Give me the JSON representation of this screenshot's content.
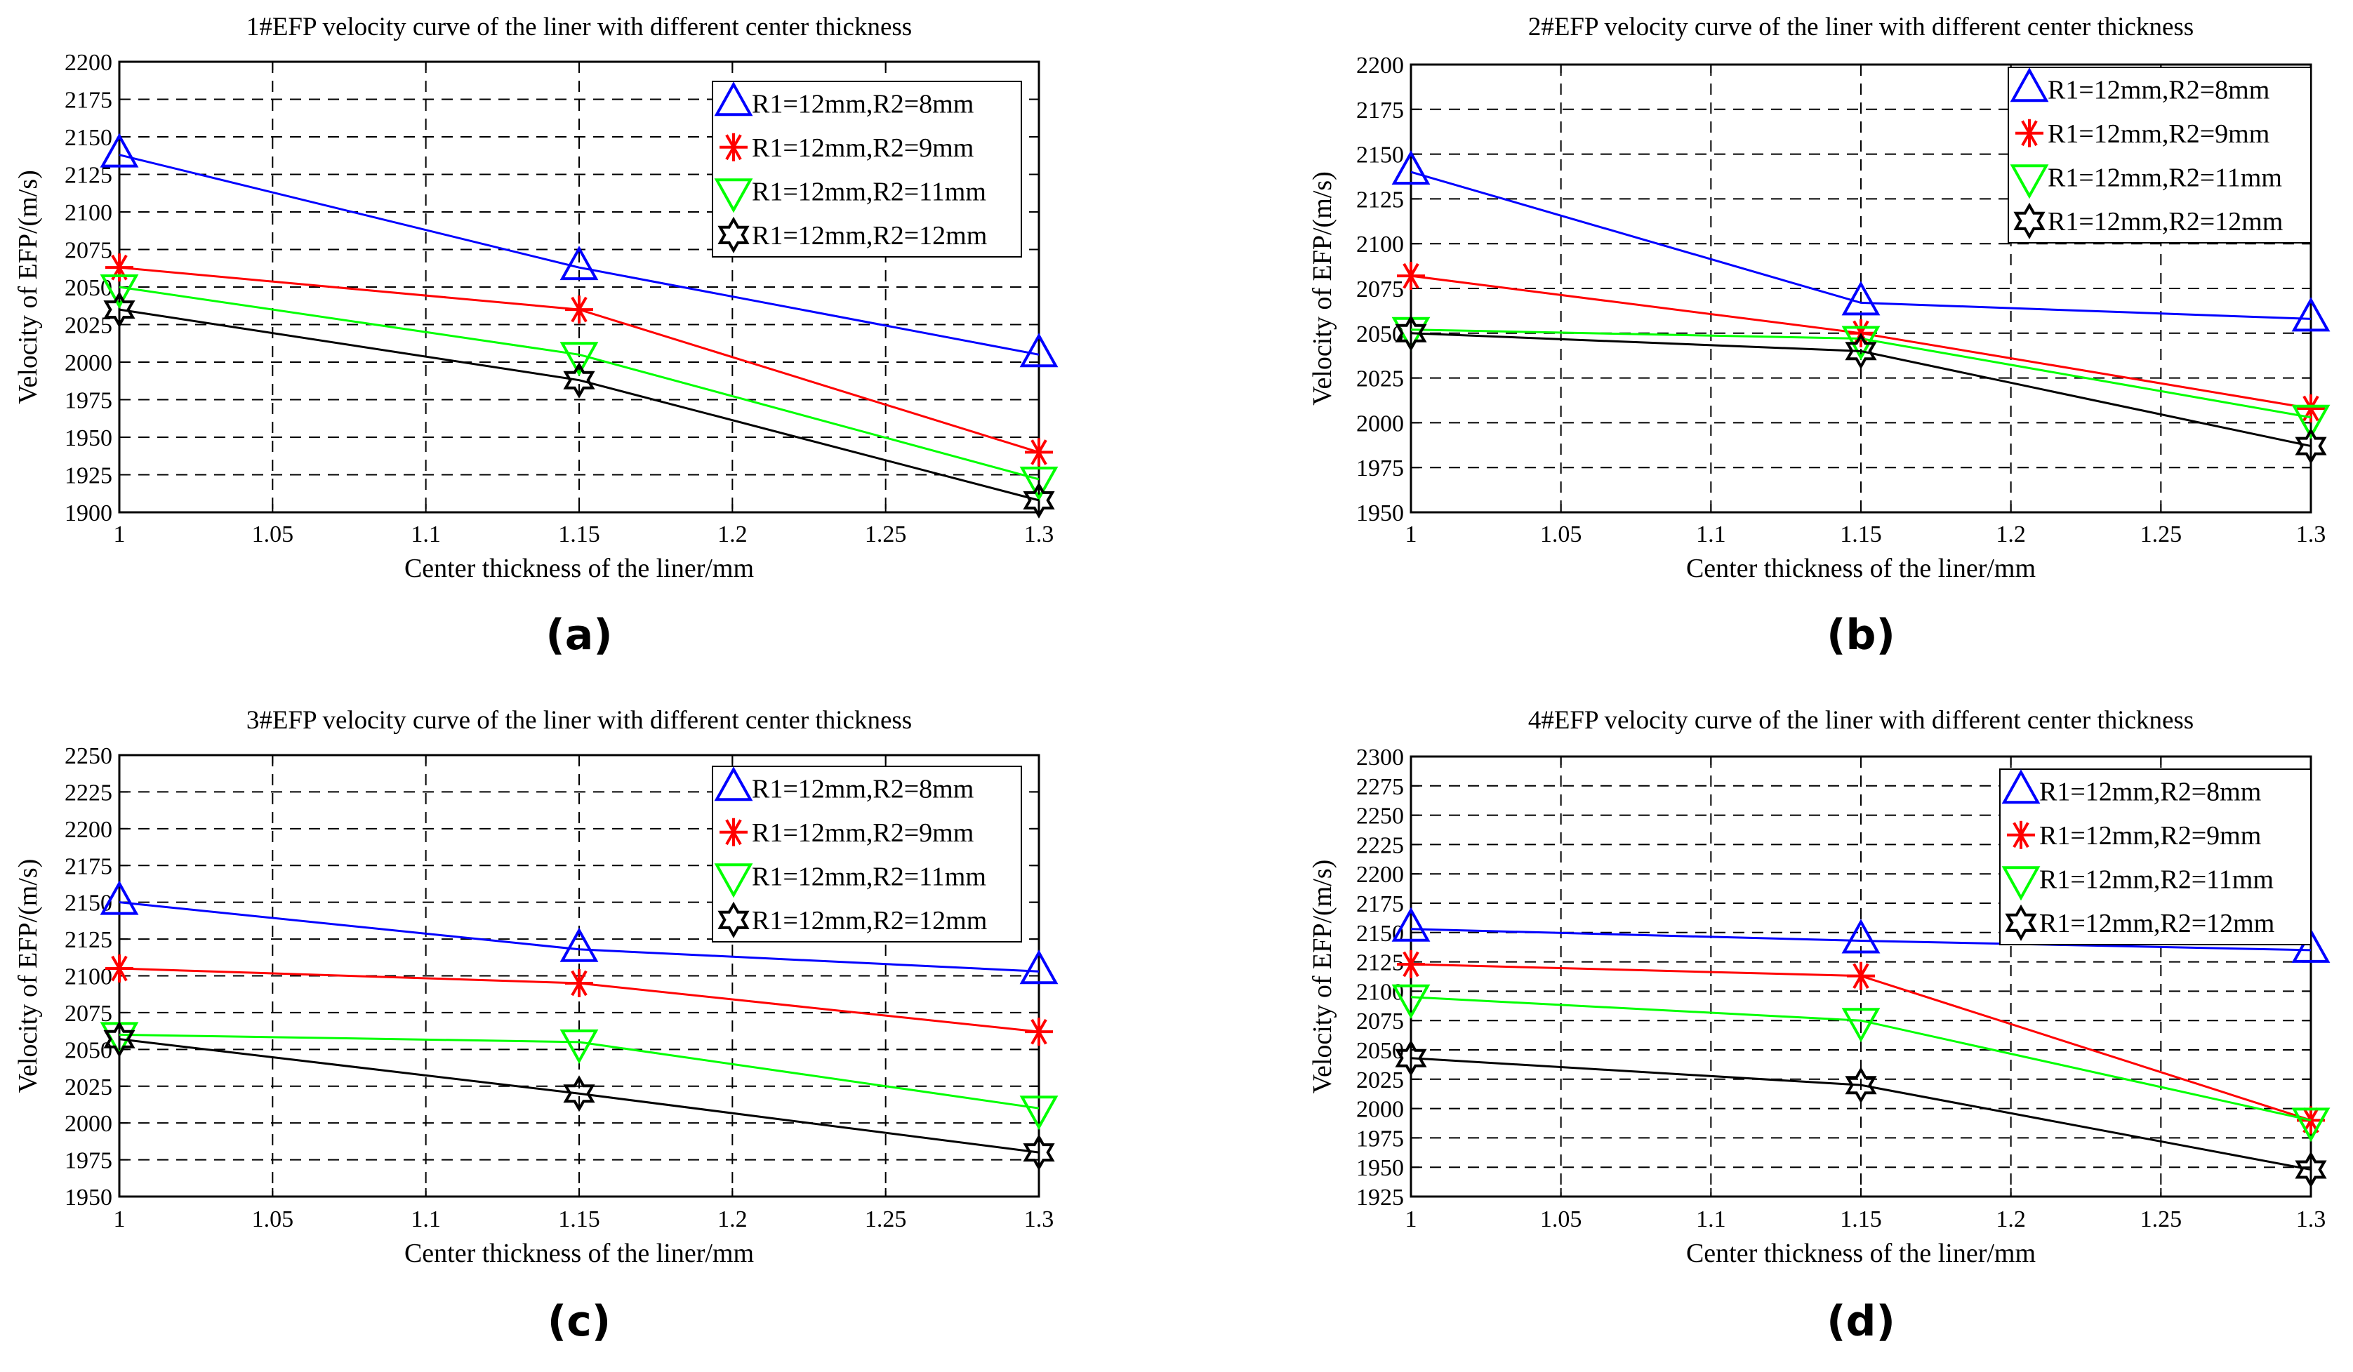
{
  "figure": {
    "markers": {
      "s1": "triangle-up",
      "s2": "asterisk",
      "s3": "triangle-down",
      "s4": "hexagram"
    },
    "colors": {
      "s1": "#0000ff",
      "s2": "#ff0000",
      "s3": "#00ff00",
      "s4": "#000000"
    }
  },
  "chart_data": [
    {
      "type": "line",
      "panel_label": "(a)",
      "title": "1#EFP velocity curve of the liner with different center thickness",
      "xlabel": "Center thickness of the liner/mm",
      "ylabel": "Velocity of EFP/(m/s)",
      "x": [
        1,
        1.15,
        1.3
      ],
      "xlim": [
        1,
        1.3
      ],
      "xticks": [
        "1",
        "1.05",
        "1.1",
        "1.15",
        "1.2",
        "1.25",
        "1.3"
      ],
      "ylim": [
        1900,
        2200
      ],
      "yticks": [
        "1900",
        "1925",
        "1950",
        "1975",
        "2000",
        "2025",
        "2050",
        "2075",
        "2100",
        "2125",
        "2150",
        "2175",
        "2200"
      ],
      "grid": true,
      "legend_position": "top-right",
      "series": [
        {
          "name": "R1=12mm,R2=8mm",
          "values": [
            2138,
            2063,
            2005
          ]
        },
        {
          "name": "R1=12mm,R2=9mm",
          "values": [
            2063,
            2035,
            1940
          ]
        },
        {
          "name": "R1=12mm,R2=11mm",
          "values": [
            2050,
            2005,
            1922
          ]
        },
        {
          "name": "R1=12mm,R2=12mm",
          "values": [
            2035,
            1988,
            1908
          ]
        }
      ]
    },
    {
      "type": "line",
      "panel_label": "(b)",
      "title": "2#EFP velocity curve of the liner with different center thickness",
      "xlabel": "Center thickness of the liner/mm",
      "ylabel": "Velocity of EFP/(m/s)",
      "x": [
        1,
        1.15,
        1.3
      ],
      "xlim": [
        1,
        1.3
      ],
      "xticks": [
        "1",
        "1.05",
        "1.1",
        "1.15",
        "1.2",
        "1.25",
        "1.3"
      ],
      "ylim": [
        1950,
        2200
      ],
      "yticks": [
        "1950",
        "1975",
        "2000",
        "2025",
        "2050",
        "2075",
        "2100",
        "2125",
        "2150",
        "2175",
        "2200"
      ],
      "grid": true,
      "legend_position": "top-right",
      "series": [
        {
          "name": "R1=12mm,R2=8mm",
          "values": [
            2140,
            2067,
            2058
          ]
        },
        {
          "name": "R1=12mm,R2=9mm",
          "values": [
            2082,
            2050,
            2008
          ]
        },
        {
          "name": "R1=12mm,R2=11mm",
          "values": [
            2052,
            2047,
            2003
          ]
        },
        {
          "name": "R1=12mm,R2=12mm",
          "values": [
            2050,
            2040,
            1987
          ]
        }
      ]
    },
    {
      "type": "line",
      "panel_label": "(c)",
      "title": "3#EFP velocity curve of the liner with different center thickness",
      "xlabel": "Center thickness of the liner/mm",
      "ylabel": "Velocity of EFP/(m/s)",
      "x": [
        1,
        1.15,
        1.3
      ],
      "xlim": [
        1,
        1.3
      ],
      "xticks": [
        "1",
        "1.05",
        "1.1",
        "1.15",
        "1.2",
        "1.25",
        "1.3"
      ],
      "ylim": [
        1950,
        2250
      ],
      "yticks": [
        "1950",
        "1975",
        "2000",
        "2025",
        "2050",
        "2075",
        "2100",
        "2125",
        "2150",
        "2175",
        "2200",
        "2225",
        "2250"
      ],
      "grid": true,
      "legend_position": "top-right",
      "series": [
        {
          "name": "R1=12mm,R2=8mm",
          "values": [
            2150,
            2118,
            2103
          ]
        },
        {
          "name": "R1=12mm,R2=9mm",
          "values": [
            2105,
            2095,
            2062
          ]
        },
        {
          "name": "R1=12mm,R2=11mm",
          "values": [
            2060,
            2055,
            2010
          ]
        },
        {
          "name": "R1=12mm,R2=12mm",
          "values": [
            2057,
            2020,
            1980
          ]
        }
      ]
    },
    {
      "type": "line",
      "panel_label": "(d)",
      "title": "4#EFP velocity curve of the liner with different center thickness",
      "xlabel": "Center thickness of the liner/mm",
      "ylabel": "Velocity of EFP/(m/s)",
      "x": [
        1,
        1.15,
        1.3
      ],
      "xlim": [
        1,
        1.3
      ],
      "xticks": [
        "1",
        "1.05",
        "1.1",
        "1.15",
        "1.2",
        "1.25",
        "1.3"
      ],
      "ylim": [
        1925,
        2300
      ],
      "yticks": [
        "1925",
        "1950",
        "1975",
        "2000",
        "2025",
        "2050",
        "2075",
        "2100",
        "2125",
        "2150",
        "2175",
        "2200",
        "2225",
        "2250",
        "2275",
        "2300"
      ],
      "grid": true,
      "legend_position": "top-right",
      "series": [
        {
          "name": "R1=12mm,R2=8mm",
          "values": [
            2153,
            2143,
            2135
          ]
        },
        {
          "name": "R1=12mm,R2=9mm",
          "values": [
            2123,
            2113,
            1990
          ]
        },
        {
          "name": "R1=12mm,R2=11mm",
          "values": [
            2095,
            2075,
            1990
          ]
        },
        {
          "name": "R1=12mm,R2=12mm",
          "values": [
            2043,
            2020,
            1948
          ]
        }
      ]
    }
  ]
}
